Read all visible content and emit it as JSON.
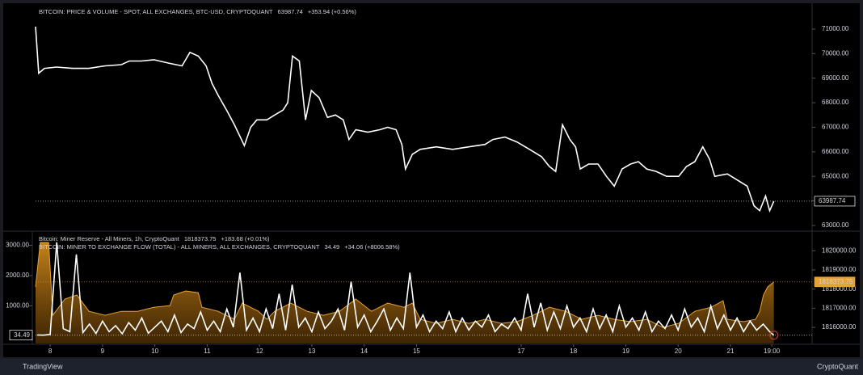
{
  "chart_data": [
    {
      "type": "line",
      "title": "BITCOIN: PRICE & VOLUME - SPOT, ALL EXCHANGES, BTC-USD, CRYPTOQUANT",
      "last_label": "63987.74",
      "change": "+353.94 (+0.56%)",
      "xlim": [
        7.72,
        22.56
      ],
      "ylim": [
        62800,
        72020
      ],
      "yticks": [
        {
          "value": 63000,
          "label": "63000.00"
        },
        {
          "value": 64000,
          "label": "64000.00"
        },
        {
          "value": 65000,
          "label": "65000.00"
        },
        {
          "value": 66000,
          "label": "66000.00"
        },
        {
          "value": 67000,
          "label": "67000.00"
        },
        {
          "value": 68000,
          "label": "68000.00"
        },
        {
          "value": 69000,
          "label": "69000.00"
        },
        {
          "value": 70000,
          "label": "70000.00"
        },
        {
          "value": 71000,
          "label": "71000.00"
        }
      ],
      "series": [
        {
          "color": "#ffffff",
          "x": [
            7.72,
            7.78,
            7.89,
            8.12,
            8.43,
            8.74,
            9.05,
            9.36,
            9.51,
            9.74,
            9.98,
            10.29,
            10.52,
            10.67,
            10.83,
            10.98,
            11.09,
            11.21,
            11.37,
            11.52,
            11.71,
            11.83,
            11.95,
            12.14,
            12.29,
            12.45,
            12.54,
            12.63,
            12.76,
            12.83,
            12.88,
            12.99,
            13.14,
            13.3,
            13.45,
            13.6,
            13.71,
            13.84,
            14.07,
            14.3,
            14.45,
            14.61,
            14.72,
            14.79,
            14.92,
            15.07,
            15.38,
            15.69,
            16.0,
            16.31,
            16.46,
            16.69,
            16.92,
            17.16,
            17.39,
            17.54,
            17.66,
            17.79,
            17.93,
            18.04,
            18.13,
            18.29,
            18.47,
            18.63,
            18.78,
            18.93,
            19.09,
            19.24,
            19.4,
            19.58,
            19.78,
            20.01,
            20.16,
            20.32,
            20.47,
            20.6,
            20.7,
            20.94,
            21.17,
            21.32,
            21.45,
            21.56,
            21.67,
            21.75,
            21.83
          ],
          "values": [
            71100,
            69200,
            69400,
            69450,
            69400,
            69400,
            69500,
            69550,
            69700,
            69700,
            69750,
            69600,
            69500,
            70050,
            69900,
            69500,
            68800,
            68300,
            67700,
            67100,
            66250,
            67000,
            67300,
            67300,
            67500,
            67700,
            68000,
            69900,
            69700,
            68300,
            67300,
            68500,
            68200,
            67400,
            67500,
            67300,
            66500,
            66900,
            66800,
            66900,
            67000,
            66900,
            66300,
            65300,
            65900,
            66100,
            66200,
            66100,
            66200,
            66300,
            66500,
            66600,
            66400,
            66100,
            65800,
            65400,
            65200,
            67100,
            66500,
            66200,
            65300,
            65500,
            65500,
            65000,
            64600,
            65300,
            65500,
            65600,
            65300,
            65200,
            65000,
            65000,
            65400,
            65600,
            66200,
            65700,
            65000,
            65100,
            64800,
            64600,
            63800,
            63600,
            64200,
            63600,
            63987.74
          ]
        }
      ]
    },
    {
      "type": "area",
      "xlim": [
        7.72,
        22.56
      ],
      "ylim": [
        -240,
        3440
      ],
      "yticks": [
        {
          "value": 1000,
          "label": "1000.00"
        },
        {
          "value": 2000,
          "label": "2000.00"
        },
        {
          "value": 3000,
          "label": "3000.00"
        }
      ],
      "y2lim": [
        1815160,
        1820980
      ],
      "y2ticks": [
        {
          "value": 1816000,
          "label": "1816000.00"
        },
        {
          "value": 1817000,
          "label": "1817000.00"
        },
        {
          "value": 1818000,
          "label": "1818000.00"
        },
        {
          "value": 1819000,
          "label": "1819000.00"
        },
        {
          "value": 1820000,
          "label": "1820000.00"
        }
      ],
      "xticks": [
        8,
        9,
        10,
        11,
        12,
        13,
        14,
        15,
        17,
        18,
        19,
        20,
        21,
        {
          "value": 21.79,
          "label": "19:00"
        }
      ],
      "series": [
        {
          "name": "Bitcoin: Miner Reserve - All Miners, 1h, CryptoQuant",
          "last_label": "1818373.75",
          "change": "+183.68 (+0.01%)",
          "type": "area",
          "axis": "y2",
          "color": "#e5a236",
          "x": [
            7.72,
            7.81,
            7.97,
            8.05,
            8.28,
            8.51,
            8.74,
            9.05,
            9.36,
            9.67,
            9.98,
            10.29,
            10.36,
            10.59,
            10.83,
            10.9,
            11.21,
            11.52,
            11.67,
            11.98,
            12.14,
            12.29,
            12.6,
            12.91,
            13.22,
            13.53,
            13.84,
            14.14,
            14.45,
            14.76,
            14.92,
            15.07,
            15.38,
            15.69,
            16.0,
            16.31,
            16.62,
            16.92,
            17.23,
            17.54,
            17.85,
            18.16,
            18.47,
            18.78,
            19.09,
            19.4,
            19.71,
            20.01,
            20.32,
            20.63,
            20.86,
            20.94,
            21.25,
            21.48,
            21.56,
            21.63,
            21.71,
            21.83
          ],
          "values": [
            1818110,
            1820430,
            1820430,
            1816630,
            1817480,
            1817690,
            1816840,
            1816630,
            1816840,
            1816840,
            1817050,
            1817140,
            1817690,
            1817900,
            1817810,
            1817050,
            1816840,
            1816420,
            1817270,
            1816840,
            1816420,
            1816840,
            1817270,
            1816840,
            1816630,
            1816840,
            1817480,
            1816840,
            1817270,
            1817050,
            1817270,
            1816420,
            1816210,
            1816420,
            1816210,
            1816420,
            1816210,
            1816300,
            1816630,
            1817050,
            1816840,
            1816420,
            1816630,
            1816420,
            1816300,
            1816420,
            1816000,
            1816210,
            1816840,
            1817050,
            1817390,
            1816420,
            1816300,
            1816420,
            1816840,
            1817690,
            1818110,
            1818373.75
          ]
        },
        {
          "name": "BITCOIN: MINER TO EXCHANGE FLOW (TOTAL) - ALL MINERS, ALL EXCHANGES, CRYPTOQUANT",
          "last_label": "34.49",
          "change": "+34.06 (+8006.58%)",
          "type": "line",
          "color": "#ffffff",
          "x": [
            7.75,
            7.875,
            8,
            8.125,
            8.25,
            8.375,
            8.5,
            8.625,
            8.75,
            8.875,
            9,
            9.125,
            9.25,
            9.375,
            9.5,
            9.625,
            9.75,
            9.875,
            10,
            10.125,
            10.25,
            10.375,
            10.5,
            10.625,
            10.75,
            10.875,
            11,
            11.125,
            11.25,
            11.375,
            11.5,
            11.625,
            11.75,
            11.875,
            12,
            12.125,
            12.25,
            12.375,
            12.5,
            12.625,
            12.75,
            12.875,
            13,
            13.125,
            13.25,
            13.375,
            13.5,
            13.625,
            13.75,
            13.875,
            14,
            14.125,
            14.25,
            14.375,
            14.5,
            14.625,
            14.75,
            14.875,
            15,
            15.125,
            15.25,
            15.375,
            15.5,
            15.625,
            15.75,
            15.875,
            16,
            16.125,
            16.25,
            16.375,
            16.5,
            16.625,
            16.75,
            16.875,
            17,
            17.125,
            17.25,
            17.375,
            17.5,
            17.625,
            17.75,
            17.875,
            18,
            18.125,
            18.25,
            18.375,
            18.5,
            18.625,
            18.75,
            18.875,
            19,
            19.125,
            19.25,
            19.375,
            19.5,
            19.625,
            19.75,
            19.875,
            20,
            20.125,
            20.25,
            20.375,
            20.5,
            20.625,
            20.75,
            20.875,
            21,
            21.125,
            21.25,
            21.375,
            21.5,
            21.625,
            21.75,
            21.83
          ],
          "values": [
            40,
            35,
            60,
            3100,
            250,
            150,
            2700,
            120,
            400,
            90,
            500,
            150,
            350,
            80,
            450,
            200,
            600,
            100,
            300,
            500,
            150,
            700,
            120,
            400,
            250,
            800,
            200,
            500,
            150,
            900,
            300,
            2100,
            200,
            600,
            150,
            900,
            250,
            1400,
            200,
            1700,
            300,
            600,
            150,
            800,
            250,
            500,
            900,
            200,
            1800,
            300,
            700,
            150,
            500,
            900,
            200,
            600,
            250,
            2100,
            300,
            700,
            150,
            500,
            250,
            800,
            150,
            600,
            200,
            500,
            300,
            700,
            150,
            400,
            250,
            600,
            200,
            1400,
            300,
            1100,
            200,
            800,
            250,
            1000,
            300,
            600,
            150,
            900,
            250,
            700,
            150,
            1000,
            300,
            600,
            200,
            800,
            150,
            500,
            250,
            700,
            200,
            900,
            300,
            600,
            150,
            1000,
            250,
            700,
            200,
            600,
            150,
            500,
            200,
            400,
            150,
            34.49
          ]
        }
      ]
    }
  ],
  "footer": {
    "left": "TradingView",
    "right": "CryptoQuant"
  }
}
